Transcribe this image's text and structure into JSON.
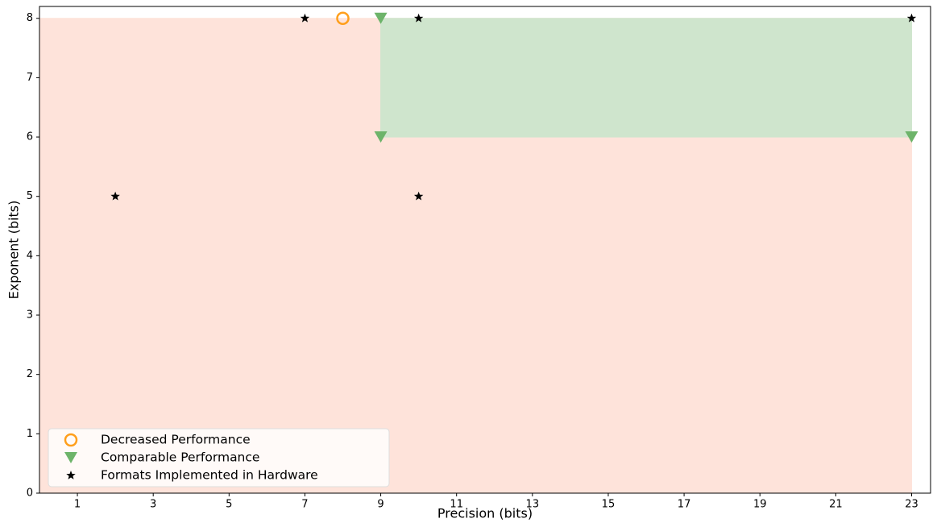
{
  "chart_data": {
    "type": "scatter",
    "xlabel": "Precision (bits)",
    "ylabel": "Exponent (bits)",
    "xlim": [
      0,
      23.5
    ],
    "ylim": [
      0,
      8.2
    ],
    "xticks": [
      1,
      3,
      5,
      7,
      9,
      11,
      13,
      15,
      17,
      19,
      21,
      23
    ],
    "yticks": [
      0,
      1,
      2,
      3,
      4,
      5,
      6,
      7,
      8
    ],
    "regions": [
      {
        "x": [
          0,
          23
        ],
        "y": [
          0,
          8
        ],
        "color": "#fee3da"
      },
      {
        "x": [
          9,
          23
        ],
        "y": [
          6,
          8
        ],
        "color": "#cfe5cd"
      }
    ],
    "legend": "lower left",
    "series": [
      {
        "name": "Decreased Performance",
        "color": "#ff9f1c",
        "marker": "circle",
        "x": [
          8
        ],
        "y": [
          8
        ]
      },
      {
        "name": "Comparable Performance",
        "color": "#6db46a",
        "marker": "triangle",
        "x": [
          9,
          9,
          23
        ],
        "y": [
          8,
          6,
          6
        ]
      },
      {
        "name": "Formats Implemented in Hardware",
        "color": "#000000",
        "marker": "star",
        "x": [
          7,
          10,
          23,
          2,
          10
        ],
        "y": [
          8,
          8,
          8,
          5,
          5
        ]
      }
    ]
  }
}
